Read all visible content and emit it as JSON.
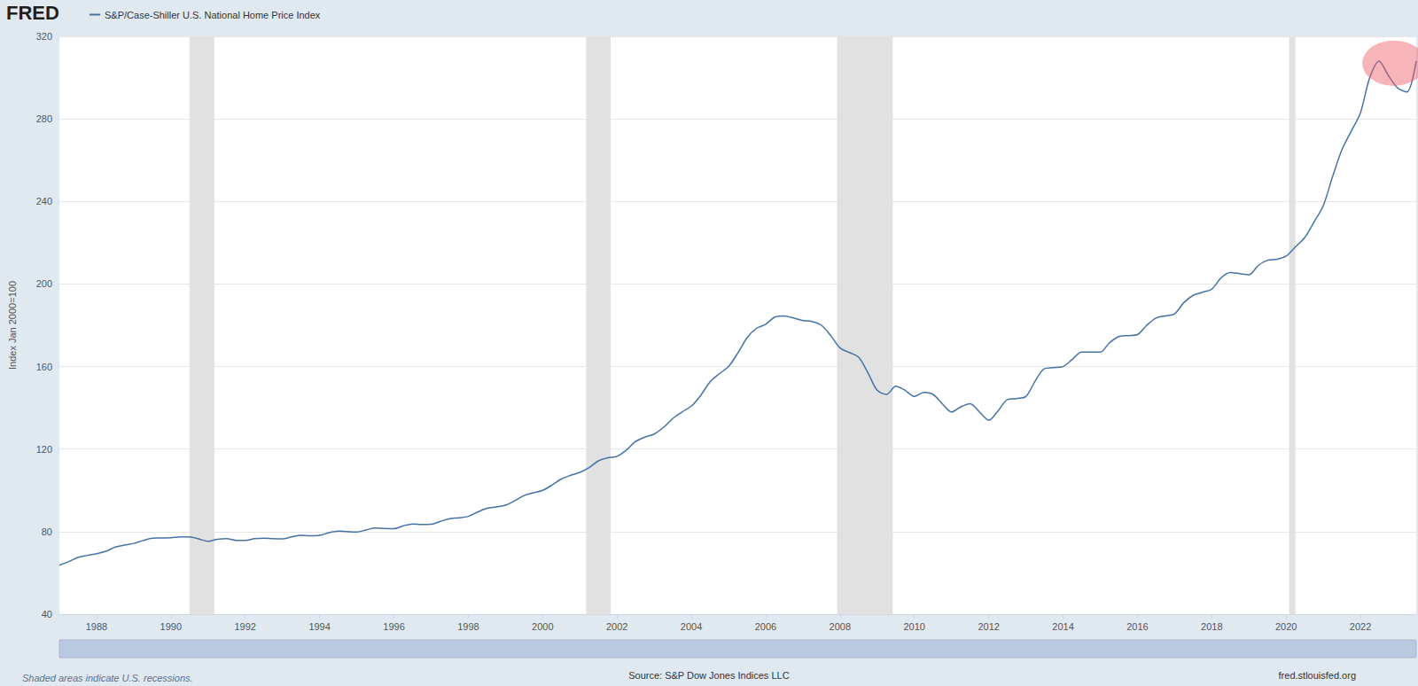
{
  "chart_data": {
    "type": "line",
    "logo": "FRED",
    "footnote": "Shaded areas indicate U.S. recessions.",
    "source": "Source: S&P Dow Jones Indices LLC",
    "site": "fred.stlouisfed.org",
    "y_label": "Index Jan 2000=100",
    "legend": "top-left",
    "grid": true,
    "xlim": [
      1987,
      2023.5
    ],
    "xticks": [
      1988,
      1990,
      1992,
      1994,
      1996,
      1998,
      2000,
      2002,
      2004,
      2006,
      2008,
      2010,
      2012,
      2014,
      2016,
      2018,
      2020,
      2022
    ],
    "ylim": [
      40,
      320
    ],
    "yticks": [
      40,
      80,
      120,
      160,
      200,
      240,
      280,
      320
    ],
    "recessions": [
      [
        1990.5,
        1991.17
      ],
      [
        2001.17,
        2001.83
      ],
      [
        2007.92,
        2009.42
      ],
      [
        2020.08,
        2020.25
      ]
    ],
    "highlight": {
      "x": [
        2022.05,
        2023.75
      ],
      "y": [
        296,
        318
      ]
    },
    "x": [
      1987,
      1987.25,
      1987.5,
      1987.75,
      1988,
      1988.25,
      1988.5,
      1988.75,
      1989,
      1989.25,
      1989.5,
      1989.75,
      1990,
      1990.25,
      1990.5,
      1990.75,
      1991,
      1991.25,
      1991.5,
      1991.75,
      1992,
      1992.25,
      1992.5,
      1992.75,
      1993,
      1993.25,
      1993.5,
      1993.75,
      1994,
      1994.25,
      1994.5,
      1994.75,
      1995,
      1995.25,
      1995.5,
      1995.75,
      1996,
      1996.25,
      1996.5,
      1996.75,
      1997,
      1997.25,
      1997.5,
      1997.75,
      1998,
      1998.25,
      1998.5,
      1998.75,
      1999,
      1999.25,
      1999.5,
      1999.75,
      2000,
      2000.25,
      2000.5,
      2000.75,
      2001,
      2001.25,
      2001.5,
      2001.75,
      2002,
      2002.25,
      2002.5,
      2002.75,
      2003,
      2003.25,
      2003.5,
      2003.75,
      2004,
      2004.25,
      2004.5,
      2004.75,
      2005,
      2005.25,
      2005.5,
      2005.75,
      2006,
      2006.25,
      2006.5,
      2006.75,
      2007,
      2007.25,
      2007.5,
      2007.75,
      2008,
      2008.25,
      2008.5,
      2008.75,
      2009,
      2009.25,
      2009.5,
      2009.75,
      2010,
      2010.25,
      2010.5,
      2010.75,
      2011,
      2011.25,
      2011.5,
      2011.75,
      2012,
      2012.25,
      2012.5,
      2012.75,
      2013,
      2013.25,
      2013.5,
      2013.75,
      2014,
      2014.25,
      2014.5,
      2014.75,
      2015,
      2015.25,
      2015.5,
      2015.75,
      2016,
      2016.25,
      2016.5,
      2016.75,
      2017,
      2017.25,
      2017.5,
      2017.75,
      2018,
      2018.25,
      2018.5,
      2018.75,
      2019,
      2019.25,
      2019.5,
      2019.75,
      2020,
      2020.25,
      2020.5,
      2020.75,
      2021,
      2021.25,
      2021.5,
      2021.75,
      2022,
      2022.25,
      2022.5,
      2022.75,
      2023,
      2023.25,
      2023.5
    ],
    "series": [
      {
        "name": "S&P/Case-Shiller U.S. National Home Price Index",
        "color": "#4572a7",
        "values": [
          63.7,
          65.5,
          67.5,
          68.5,
          69.3,
          70.5,
          72.5,
          73.5,
          74.3,
          75.7,
          76.8,
          76.9,
          77.0,
          77.5,
          77.5,
          76.5,
          75.3,
          76.3,
          76.6,
          75.8,
          75.7,
          76.6,
          76.8,
          76.6,
          76.5,
          77.5,
          78.2,
          78.0,
          78.2,
          79.5,
          80.3,
          80.0,
          79.8,
          80.8,
          81.8,
          81.5,
          81.4,
          82.8,
          83.7,
          83.5,
          83.6,
          85.0,
          86.3,
          86.7,
          87.4,
          89.5,
          91.3,
          92.0,
          92.8,
          95.0,
          97.5,
          98.8,
          100.0,
          102.5,
          105.5,
          107.3,
          108.7,
          111.0,
          114.3,
          115.8,
          116.5,
          119.5,
          123.7,
          125.8,
          127.3,
          130.5,
          134.8,
          138.0,
          140.8,
          146.0,
          152.5,
          156.5,
          160.0,
          166.5,
          174.0,
          178.5,
          180.5,
          184.0,
          184.5,
          183.5,
          182.3,
          181.8,
          180.0,
          175.0,
          169.0,
          166.8,
          164.5,
          157.0,
          148.5,
          146.5,
          150.5,
          148.5,
          145.5,
          147.5,
          146.5,
          142.0,
          138.0,
          140.5,
          142.0,
          138.0,
          134.0,
          138.5,
          144.0,
          144.5,
          145.5,
          153.0,
          159.0,
          159.5,
          160.0,
          163.5,
          167.0,
          167.0,
          167.0,
          171.5,
          174.5,
          175.0,
          175.5,
          180.0,
          183.5,
          184.5,
          185.5,
          191.0,
          194.5,
          196.0,
          197.5,
          203.0,
          205.5,
          205.0,
          204.5,
          209.0,
          211.5,
          212.0,
          213.5,
          218.0,
          222.5,
          230.0,
          238.0,
          252.0,
          265.0,
          274.0,
          283.0,
          300.0,
          308.0,
          301.0,
          295.0,
          293.0,
          308.0
        ]
      }
    ]
  }
}
